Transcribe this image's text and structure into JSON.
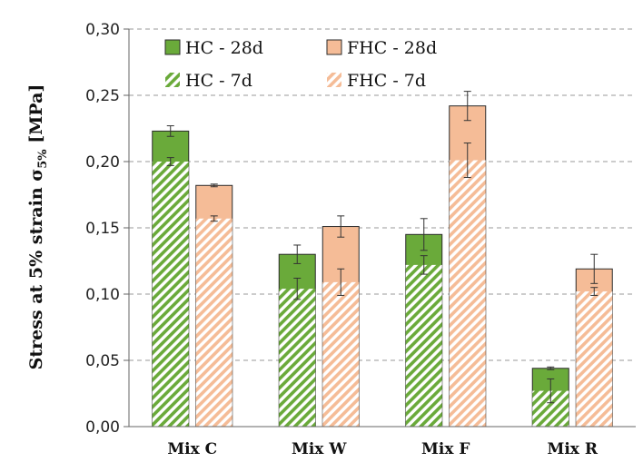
{
  "chart_data": {
    "type": "bar",
    "categories": [
      "Mix C",
      "Mix W",
      "Mix F",
      "Mix R"
    ],
    "ylabel": {
      "main": "Stress at 5% strain σ",
      "subscript": "5%",
      "unit": " [MPa]"
    },
    "ylim": [
      0,
      0.3
    ],
    "yticks": [
      0.0,
      0.05,
      0.1,
      0.15,
      0.2,
      0.25,
      0.3
    ],
    "ytick_labels": [
      "0,00",
      "0,05",
      "0,10",
      "0,15",
      "0,20",
      "0,25",
      "0,30"
    ],
    "grid": "horizontal dashed",
    "legend_position": "top-left",
    "series": [
      {
        "name": "HC - 28d",
        "fill": "solid",
        "color": "#6aaa3a",
        "group": "HC",
        "values": [
          0.223,
          0.13,
          0.145,
          0.044
        ],
        "errors": [
          0.004,
          0.007,
          0.012,
          0.001
        ]
      },
      {
        "name": "FHC - 28d",
        "fill": "solid",
        "color": "#f5bc97",
        "group": "FHC",
        "values": [
          0.182,
          0.151,
          0.242,
          0.119
        ],
        "errors": [
          0.001,
          0.008,
          0.011,
          0.011
        ]
      },
      {
        "name": "HC - 7d",
        "fill": "hatched",
        "color": "#6aaa3a",
        "group": "HC",
        "values": [
          0.2,
          0.104,
          0.122,
          0.027
        ],
        "errors": [
          0.003,
          0.008,
          0.007,
          0.009
        ]
      },
      {
        "name": "FHC - 7d",
        "fill": "hatched",
        "color": "#f5bc97",
        "group": "FHC",
        "values": [
          0.157,
          0.109,
          0.201,
          0.102
        ],
        "errors": [
          0.002,
          0.01,
          0.013,
          0.003
        ]
      }
    ]
  }
}
